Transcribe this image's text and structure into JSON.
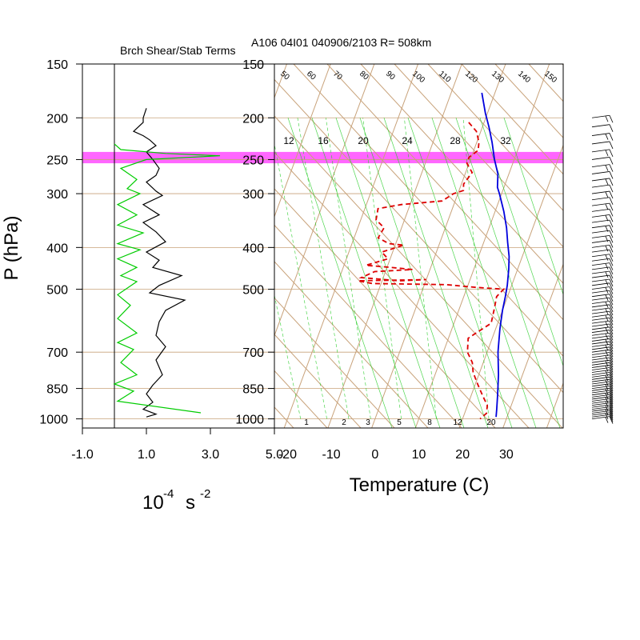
{
  "main_title": "A106 04I01 040906/2103 R= 508km",
  "left_panel": {
    "title": "Brch Shear/Stab Terms",
    "y_axis_label": "P (hPa)",
    "x_axis_label_base": "10",
    "x_axis_label_exp1": "-4",
    "x_axis_label_unit": "s",
    "x_axis_label_exp2": "-2"
  },
  "right_panel": {
    "x_axis_label": "Temperature (C)"
  },
  "colors": {
    "stability_line": "#000000",
    "shear_line": "#00cc00",
    "temperature_line": "#0000dd",
    "dewpoint_line": "#dd0000",
    "highlight_band": "#ff55ff",
    "isotherm_lines": "#c8a27a",
    "mixing_ratio_lines": "#22cc22"
  },
  "chart_data": [
    {
      "type": "line",
      "title": "Brch Shear/Stab Terms",
      "xlabel": "10-4 s-2",
      "ylabel": "P (hPa)",
      "y_scale": "log",
      "y_reversed": true,
      "xlim": [
        -1.0,
        5.0
      ],
      "ylim": [
        1050,
        150
      ],
      "x_ticks": [
        -1.0,
        1.0,
        3.0,
        5.0
      ],
      "x_tick_labels": [
        "-1.0",
        "1.0",
        "3.0",
        "5.0"
      ],
      "y_ticks": [
        150,
        200,
        250,
        300,
        400,
        500,
        700,
        850,
        1000
      ],
      "y_tick_labels": [
        "150",
        "200",
        "250",
        "300",
        "400",
        "500",
        "700",
        "850",
        "1000"
      ],
      "highlight_band_hPa": [
        240,
        255
      ],
      "series": [
        {
          "points": [
            [
              1.0,
              190
            ],
            [
              0.95,
              195
            ],
            [
              0.9,
              200
            ],
            [
              0.9,
              205
            ],
            [
              0.6,
              215
            ],
            [
              0.9,
              220
            ],
            [
              1.1,
              225
            ],
            [
              1.3,
              232
            ],
            [
              1.0,
              240
            ],
            [
              1.2,
              250
            ],
            [
              1.4,
              262
            ],
            [
              1.3,
              272
            ],
            [
              1.0,
              282
            ],
            [
              1.3,
              296
            ],
            [
              1.5,
              303
            ],
            [
              0.9,
              318
            ],
            [
              1.4,
              336
            ],
            [
              0.9,
              350
            ],
            [
              1.3,
              368
            ],
            [
              1.6,
              388
            ],
            [
              1.0,
              410
            ],
            [
              1.4,
              428
            ],
            [
              1.2,
              445
            ],
            [
              2.1,
              465
            ],
            [
              1.4,
              490
            ],
            [
              1.1,
              510
            ],
            [
              2.2,
              530
            ],
            [
              1.6,
              560
            ],
            [
              1.4,
              595
            ],
            [
              1.3,
              640
            ],
            [
              1.6,
              680
            ],
            [
              1.3,
              730
            ],
            [
              1.5,
              790
            ],
            [
              1.2,
              835
            ],
            [
              1.0,
              875
            ],
            [
              1.2,
              915
            ],
            [
              0.9,
              950
            ],
            [
              1.3,
              975
            ],
            [
              1.0,
              990
            ]
          ]
        },
        {
          "points": [
            [
              0.0,
              230
            ],
            [
              0.2,
              237
            ],
            [
              1.6,
              242
            ],
            [
              3.3,
              245
            ],
            [
              1.0,
              250
            ],
            [
              0.2,
              262
            ],
            [
              0.7,
              278
            ],
            [
              0.4,
              292
            ],
            [
              0.8,
              300
            ],
            [
              0.1,
              318
            ],
            [
              0.7,
              336
            ],
            [
              0.1,
              355
            ],
            [
              0.9,
              370
            ],
            [
              0.1,
              392
            ],
            [
              0.8,
              405
            ],
            [
              0.1,
              425
            ],
            [
              0.7,
              445
            ],
            [
              0.2,
              465
            ],
            [
              0.7,
              480
            ],
            [
              0.1,
              515
            ],
            [
              0.5,
              545
            ],
            [
              0.1,
              585
            ],
            [
              0.7,
              632
            ],
            [
              0.1,
              665
            ],
            [
              0.6,
              690
            ],
            [
              0.2,
              740
            ],
            [
              0.7,
              790
            ],
            [
              0.0,
              830
            ],
            [
              0.6,
              862
            ],
            [
              0.1,
              910
            ],
            [
              2.7,
              968
            ]
          ]
        }
      ]
    },
    {
      "type": "line",
      "xlabel": "Temperature (C)",
      "y_scale": "log",
      "y_reversed": true,
      "xlim": [
        -23,
        43
      ],
      "ylim": [
        1050,
        150
      ],
      "x_ticks": [
        -20,
        -10,
        0,
        10,
        20,
        30
      ],
      "x_tick_labels": [
        "-20",
        "-10",
        "0",
        "10",
        "20",
        "30"
      ],
      "y_ticks": [
        150,
        200,
        250,
        300,
        400,
        500,
        700,
        850,
        1000
      ],
      "y_tick_labels": [
        "150",
        "200",
        "250",
        "300",
        "400",
        "500",
        "700",
        "850",
        "1000"
      ],
      "mixing_ratio_top_labels": [
        "12",
        "16",
        "20",
        "24",
        "28",
        "32"
      ],
      "mixing_ratio_bottom_labels": [
        "1",
        "2",
        "3",
        "5",
        "8",
        "12",
        "20"
      ],
      "theta_labels": [
        "50",
        "60",
        "70",
        "80",
        "90",
        "100",
        "110",
        "120",
        "130",
        "140",
        "150"
      ],
      "series": [
        {
          "points": [
            [
              -3.0,
              175
            ],
            [
              -0.5,
              195
            ],
            [
              1.5,
              210
            ],
            [
              3.5,
              228
            ],
            [
              5.5,
              250
            ],
            [
              7.5,
              270
            ],
            [
              8.5,
              290
            ],
            [
              9.5,
              300
            ],
            [
              12.0,
              330
            ],
            [
              14.0,
              360
            ],
            [
              15.5,
              390
            ],
            [
              17.0,
              420
            ],
            [
              18.0,
              450
            ],
            [
              19.0,
              490
            ],
            [
              19.5,
              520
            ],
            [
              20.0,
              560
            ],
            [
              21.0,
              620
            ],
            [
              22.5,
              700
            ],
            [
              24.5,
              790
            ],
            [
              26.0,
              880
            ],
            [
              27.0,
              950
            ],
            [
              27.5,
              990
            ]
          ]
        },
        {
          "points": [
            [
              -3.5,
              205
            ],
            [
              -1.0,
              215
            ],
            [
              0.5,
              228
            ],
            [
              1.0,
              238
            ],
            [
              -0.5,
              247
            ],
            [
              -0.5,
              255
            ],
            [
              1.5,
              268
            ],
            [
              0.5,
              285
            ],
            [
              1.0,
              295
            ],
            [
              -1.0,
              300
            ],
            [
              -3.0,
              312
            ],
            [
              -12.0,
              318
            ],
            [
              -17.0,
              325
            ],
            [
              -16.5,
              345
            ],
            [
              -14.0,
              360
            ],
            [
              -14.5,
              380
            ],
            [
              -11.5,
              392
            ],
            [
              -8.0,
              395
            ],
            [
              -12.5,
              410
            ],
            [
              -10.5,
              425
            ],
            [
              -15.0,
              440
            ],
            [
              -9.0,
              445
            ],
            [
              -4.0,
              450
            ],
            [
              -12.5,
              455
            ],
            [
              -15.0,
              470
            ],
            [
              -6.0,
              478
            ],
            [
              0.0,
              475
            ],
            [
              -15.5,
              478
            ],
            [
              -12.0,
              485
            ],
            [
              5.0,
              488
            ],
            [
              12.0,
              495
            ],
            [
              18.5,
              500
            ],
            [
              17.5,
              520
            ],
            [
              18.0,
              555
            ],
            [
              18.5,
              600
            ],
            [
              16.0,
              630
            ],
            [
              14.5,
              650
            ],
            [
              15.5,
              700
            ],
            [
              17.5,
              740
            ],
            [
              18.5,
              780
            ],
            [
              20.5,
              830
            ],
            [
              22.5,
              880
            ],
            [
              24.5,
              930
            ],
            [
              25.0,
              970
            ],
            [
              24.0,
              1000
            ]
          ]
        }
      ]
    }
  ]
}
